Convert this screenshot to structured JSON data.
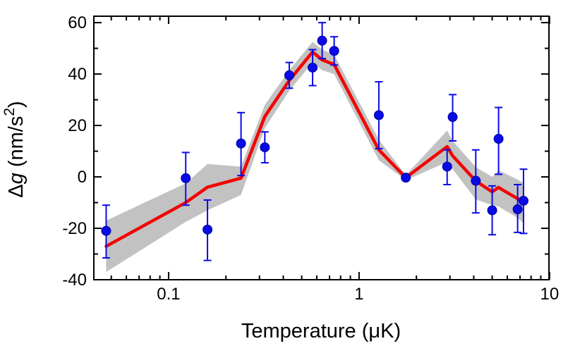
{
  "figure": {
    "background": "#ffffff"
  },
  "chart_data": {
    "type": "scatter",
    "title": "",
    "xlabel": "Temperature (μK)",
    "ylabel": "Δg (nm/s²)",
    "ylabel_rich": [
      {
        "t": "Δ"
      },
      {
        "t": "g",
        "style": "italic"
      },
      {
        "t": " (nm/s"
      },
      {
        "t": "2",
        "style": "super"
      },
      {
        "t": ")",
        "style": "after-super"
      }
    ],
    "x_scale": "log",
    "y_scale": "linear",
    "xlim": [
      0.0405,
      9.93
    ],
    "ylim": [
      -40,
      62.5
    ],
    "grid": false,
    "legend": false,
    "axis_color": "#000000",
    "x_major_ticks": [
      {
        "value": 0.1,
        "label": "0.1"
      },
      {
        "value": 1,
        "label": "1"
      },
      {
        "value": 10,
        "label": "10"
      }
    ],
    "x_minor_ticks": [
      0.05,
      0.06,
      0.07,
      0.08,
      0.09,
      0.2,
      0.3,
      0.4,
      0.5,
      0.6,
      0.7,
      0.8,
      0.9,
      2,
      3,
      4,
      5,
      6,
      7,
      8,
      9
    ],
    "y_major_ticks": [
      {
        "value": -40,
        "label": "-40"
      },
      {
        "value": -20,
        "label": "-20"
      },
      {
        "value": 0,
        "label": "0"
      },
      {
        "value": 20,
        "label": "20"
      },
      {
        "value": 40,
        "label": "40"
      },
      {
        "value": 60,
        "label": "60"
      }
    ],
    "y_minor_ticks": [
      -30,
      -10,
      10,
      30,
      50
    ],
    "series": [
      {
        "name": "confidence-band",
        "type": "band",
        "color": "#c2c2c2",
        "upper": [
          [
            0.047,
            -17
          ],
          [
            0.123,
            -2.5
          ],
          [
            0.16,
            5
          ],
          [
            0.24,
            4
          ],
          [
            0.32,
            28
          ],
          [
            0.43,
            41.5
          ],
          [
            0.57,
            52.5
          ],
          [
            0.64,
            49.5
          ],
          [
            0.74,
            47.5
          ],
          [
            1.27,
            14.5
          ],
          [
            1.76,
            0.7
          ],
          [
            2.9,
            18
          ],
          [
            3.1,
            14
          ],
          [
            4.1,
            3.8
          ],
          [
            5.0,
            0
          ],
          [
            5.4,
            2.5
          ],
          [
            6.8,
            -1
          ],
          [
            7.3,
            -2.5
          ]
        ],
        "lower": [
          [
            0.047,
            -37
          ],
          [
            0.123,
            -17.5
          ],
          [
            0.16,
            -13
          ],
          [
            0.24,
            -7
          ],
          [
            0.32,
            19
          ],
          [
            0.43,
            33.5
          ],
          [
            0.57,
            44.5
          ],
          [
            0.64,
            41.5
          ],
          [
            0.74,
            40
          ],
          [
            1.27,
            6.5
          ],
          [
            1.76,
            -1.3
          ],
          [
            2.9,
            5.8
          ],
          [
            3.1,
            3
          ],
          [
            4.1,
            -8.8
          ],
          [
            5.0,
            -11
          ],
          [
            5.4,
            -11.5
          ],
          [
            6.8,
            -16
          ],
          [
            7.3,
            -18
          ]
        ]
      },
      {
        "name": "model-line",
        "type": "line",
        "color": "#f50000",
        "points": [
          [
            0.047,
            -27
          ],
          [
            0.123,
            -10
          ],
          [
            0.16,
            -4
          ],
          [
            0.24,
            -0.5
          ],
          [
            0.32,
            23.5
          ],
          [
            0.43,
            37.5
          ],
          [
            0.57,
            48.6
          ],
          [
            0.64,
            45.5
          ],
          [
            0.74,
            43.7
          ],
          [
            1.27,
            10.5
          ],
          [
            1.76,
            -0.3
          ],
          [
            2.9,
            11.8
          ],
          [
            3.1,
            8.2
          ],
          [
            4.1,
            -1.6
          ],
          [
            5.0,
            -5.8
          ],
          [
            5.4,
            -4.1
          ],
          [
            6.8,
            -8.5
          ],
          [
            7.3,
            -9.3
          ]
        ]
      },
      {
        "name": "measured-data",
        "type": "scatter",
        "color": "#0a0ae6",
        "marker": "circle",
        "points_format": [
          "x",
          "y",
          "y_err_low",
          "y_err_high"
        ],
        "points": [
          [
            0.047,
            -21,
            -31.5,
            -11
          ],
          [
            0.123,
            -0.5,
            -11,
            9.5
          ],
          [
            0.16,
            -20.5,
            -32.5,
            -9
          ],
          [
            0.24,
            13,
            0.5,
            25
          ],
          [
            0.32,
            11.5,
            5.5,
            17.5
          ],
          [
            0.43,
            39.5,
            34.5,
            44.5
          ],
          [
            0.57,
            42.5,
            35.5,
            49.5
          ],
          [
            0.64,
            53,
            46,
            60
          ],
          [
            0.74,
            49,
            43.5,
            54.5
          ],
          [
            1.27,
            24,
            11,
            37
          ],
          [
            1.76,
            -0.3,
            -0.3,
            -0.3
          ],
          [
            2.9,
            4,
            -3,
            10.5
          ],
          [
            3.1,
            23.3,
            14,
            32
          ],
          [
            4.1,
            -1.5,
            -14,
            10.5
          ],
          [
            5.0,
            -13,
            -22.5,
            -3.5
          ],
          [
            5.4,
            14.8,
            1,
            27
          ],
          [
            6.8,
            -12.6,
            -21.6,
            -3
          ],
          [
            7.3,
            -9.3,
            -22,
            3
          ]
        ]
      }
    ]
  }
}
